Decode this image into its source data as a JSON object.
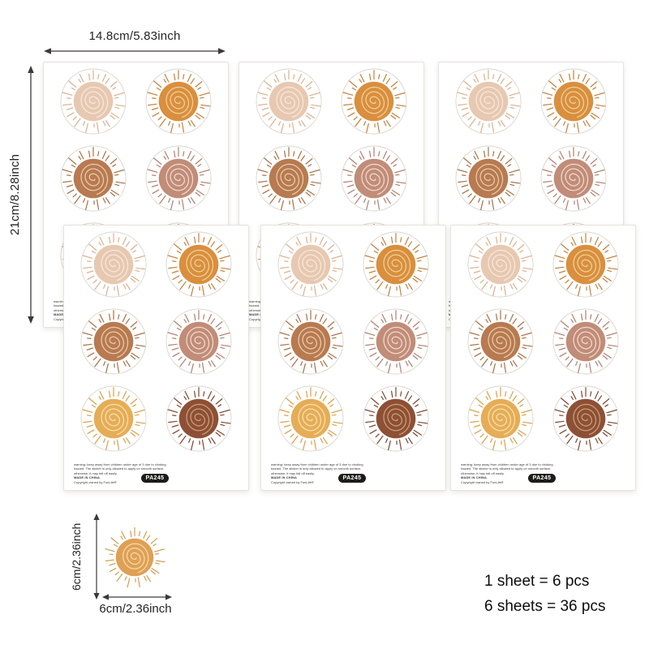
{
  "annotations": {
    "sheet_width_label": "14.8cm/5.83inch",
    "sheet_height_label": "21cm/8.28inch",
    "sticker_height_label": "6cm/2.36inch",
    "sticker_width_label": "6cm/2.36inch"
  },
  "sheet": {
    "warning_lines": [
      "warning: keep away from children under age of 3 due to choking",
      "hazard. The sticker is only allowed to apply on smooth surface,",
      "otherwise, it may fall off easily.",
      "MADE IN CHINA",
      "Copyright owned by FunLife®"
    ],
    "badge_label": "PA245",
    "outline_color": "#d6d1c9",
    "suns": [
      {
        "name": "blush",
        "center": "#e7c8b1",
        "spiral": "#f6e8da",
        "rays": "#dcb190"
      },
      {
        "name": "orange",
        "center": "#d98f3e",
        "spiral": "#efce96",
        "rays": "#c5823d"
      },
      {
        "name": "terracotta",
        "center": "#b87a50",
        "spiral": "#e6c9a8",
        "rays": "#a97247"
      },
      {
        "name": "dusty-rose",
        "center": "#c18c78",
        "spiral": "#eed8c9",
        "rays": "#b38070"
      },
      {
        "name": "golden",
        "center": "#e6ad57",
        "spiral": "#f5dfab",
        "rays": "#dba04b"
      },
      {
        "name": "rust",
        "center": "#8d5036",
        "spiral": "#c99c73",
        "rays": "#7f4831"
      }
    ]
  },
  "single_sticker": {
    "name": "orange-sun",
    "center": "#dfa055",
    "spiral": "#f3dba8",
    "rays": "#d49a4a"
  },
  "counts": {
    "line1": "1 sheet = 6 pcs",
    "line2": "6 sheets = 36 pcs"
  }
}
